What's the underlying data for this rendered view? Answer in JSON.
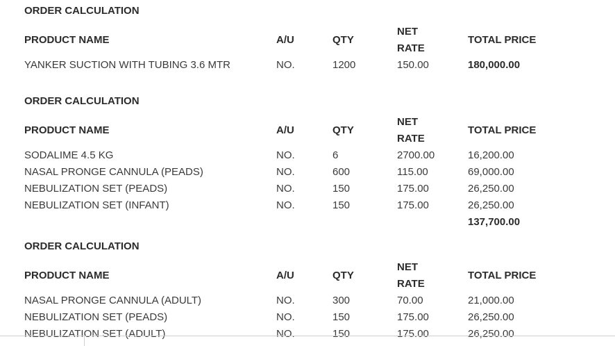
{
  "columns": {
    "product_name": "PRODUCT NAME",
    "au": "A/U",
    "qty": "QTY",
    "net": "NET",
    "rate": "RATE",
    "total_price": "TOTAL PRICE"
  },
  "sections": [
    {
      "title": "ORDER CALCULATION",
      "items": [
        {
          "name": "YANKER SUCTION WITH TUBING 3.6 MTR",
          "au": "NO.",
          "qty": "1200",
          "rate": "150.00",
          "total": "180,000.00"
        }
      ]
    },
    {
      "title": "ORDER CALCULATION",
      "items": [
        {
          "name": "SODALIME 4.5 KG",
          "au": "NO.",
          "qty": "6",
          "rate": "2700.00",
          "total": "16,200.00"
        },
        {
          "name": "NASAL PRONGE CANNULA (PEADS)",
          "au": "NO.",
          "qty": "600",
          "rate": "115.00",
          "total": "69,000.00"
        },
        {
          "name": "NEBULIZATION SET (PEADS)",
          "au": "NO.",
          "qty": "150",
          "rate": "175.00",
          "total": "26,250.00"
        },
        {
          "name": "NEBULIZATION SET (INFANT)",
          "au": "NO.",
          "qty": "150",
          "rate": "175.00",
          "total": "26,250.00"
        }
      ],
      "sum": "137,700.00"
    },
    {
      "title": "ORDER CALCULATION",
      "items": [
        {
          "name": "NASAL PRONGE CANNULA (ADULT)",
          "au": "NO.",
          "qty": "300",
          "rate": "70.00",
          "total": "21,000.00"
        },
        {
          "name": "NEBULIZATION SET (PEADS)",
          "au": "NO.",
          "qty": "150",
          "rate": "175.00",
          "total": "26,250.00"
        },
        {
          "name": "NEBULIZATION SET (ADULT)",
          "au": "NO.",
          "qty": "150",
          "rate": "175.00",
          "total": "26,250.00"
        }
      ]
    }
  ]
}
